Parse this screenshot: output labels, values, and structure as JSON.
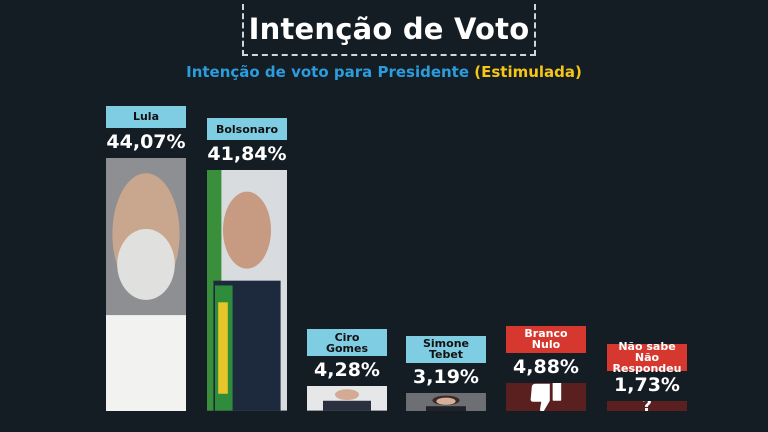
{
  "header": {
    "title": "Intenção de Voto",
    "subtitle_main": "Intenção de voto para Presidente",
    "subtitle_highlight": "(Estimulada)"
  },
  "colors": {
    "background": "#141c24",
    "subtitle_blue": "#2b9ddc",
    "subtitle_yellow": "#f5c518",
    "label_blue": "#7fcde3",
    "label_red": "#d6382f",
    "bar_dark_red": "#5a2020"
  },
  "chart_data": {
    "type": "bar",
    "title": "Intenção de Voto",
    "subtitle": "Intenção de voto para Presidente (Estimulada)",
    "categories": [
      "Lula",
      "Bolsonaro",
      "Ciro Gomes",
      "Simone Tebet",
      "Branco Nulo",
      "Não sabe Não Respondeu"
    ],
    "values": [
      44.07,
      41.84,
      4.28,
      3.19,
      4.88,
      1.73
    ],
    "value_labels": [
      "44,07%",
      "41,84%",
      "4,28%",
      "3,19%",
      "4,88%",
      "1,73%"
    ],
    "label_lines": [
      [
        "Lula"
      ],
      [
        "Bolsonaro"
      ],
      [
        "Ciro",
        "Gomes"
      ],
      [
        "Simone",
        "Tebet"
      ],
      [
        "Branco",
        "Nulo"
      ],
      [
        "Não sabe",
        "Não Respondeu"
      ]
    ],
    "bar_fill": [
      "photo",
      "photo",
      "photo",
      "photo",
      "thumbs-down-icon",
      "question-icon"
    ],
    "label_style": [
      "blue",
      "blue",
      "blue",
      "blue",
      "red",
      "red"
    ],
    "xlabel": "",
    "ylabel": "",
    "ylim": [
      0,
      50
    ],
    "grid": false,
    "legend": "none"
  },
  "icons": {
    "thumbs_down": "thumbs-down-icon",
    "question": "question-mark-icon",
    "question_glyph": "?"
  }
}
